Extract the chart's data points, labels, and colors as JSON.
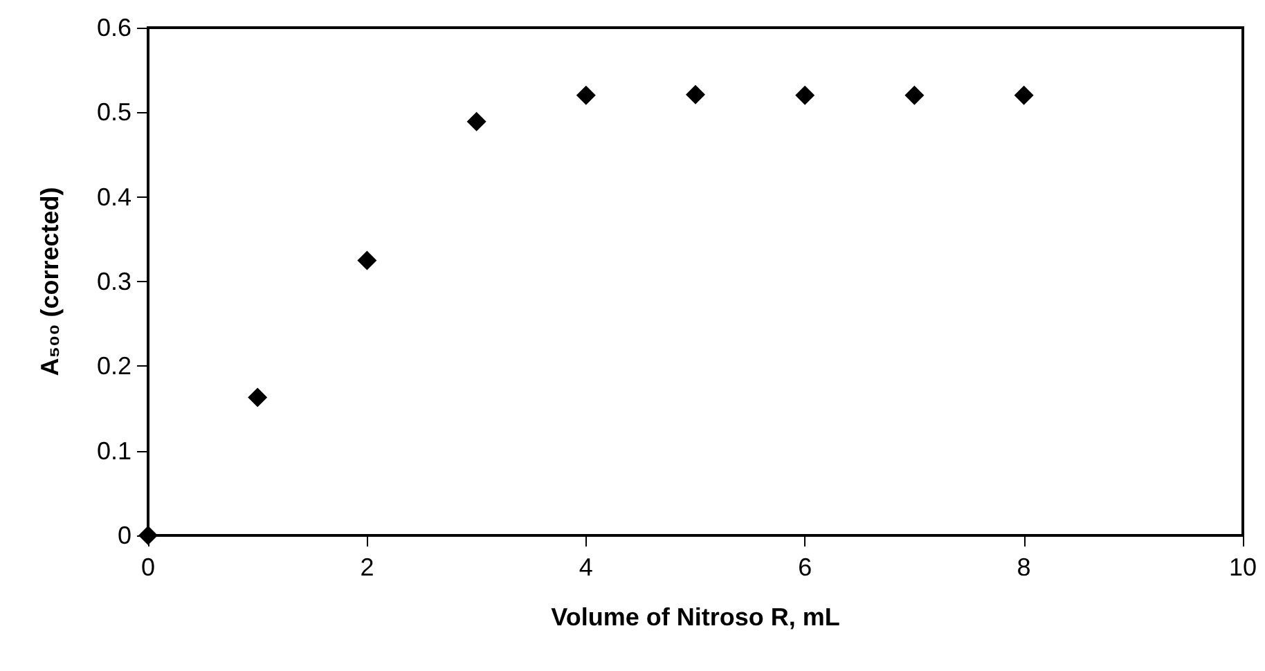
{
  "chart_data": {
    "type": "scatter",
    "xlabel": "Volume of Nitroso R, mL",
    "ylabel": "A₅₀₀ (corrected)",
    "x": [
      0,
      1,
      2,
      3,
      4,
      5,
      6,
      7,
      8
    ],
    "series": [
      {
        "color": "#000000",
        "values": [
          0,
          0.163,
          0.325,
          0.489,
          0.52,
          0.521,
          0.52,
          0.52,
          0.52
        ]
      }
    ],
    "xlim": [
      0,
      10
    ],
    "xticks": [
      0,
      2,
      4,
      6,
      8,
      10
    ],
    "ylim": [
      0,
      0.6
    ],
    "yticks": [
      0,
      0.1,
      0.2,
      0.3,
      0.4,
      0.5,
      0.6
    ],
    "marker": "diamond",
    "grid": false
  }
}
